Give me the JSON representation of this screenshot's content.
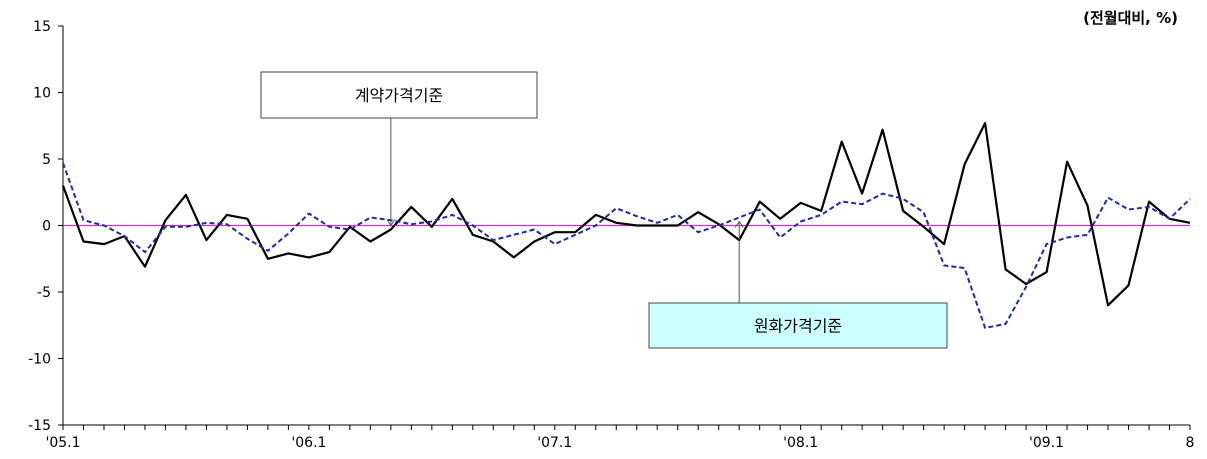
{
  "chart_data": {
    "type": "line",
    "unit_label": "(전월대비, %)",
    "ylim": [
      -15,
      15
    ],
    "y_ticks": [
      15,
      10,
      5,
      0,
      -5,
      -10,
      -15
    ],
    "x_tick_labels": [
      "'05.1",
      "'06.1",
      "'07.1",
      "'08.1",
      "'09.1",
      "8"
    ],
    "x_tick_label_months": [
      0,
      12,
      24,
      36,
      48,
      55
    ],
    "reference_line": {
      "value": 0,
      "color": "#cc33cc"
    },
    "series": [
      {
        "name": "계약가격기준",
        "color": "#000000",
        "dash": "solid",
        "x": [
          0,
          1,
          2,
          3,
          4,
          5,
          6,
          7,
          8,
          9,
          10,
          11,
          12,
          13,
          14,
          15,
          16,
          17,
          18,
          19,
          20,
          21,
          22,
          23,
          24,
          25,
          26,
          27,
          28,
          29,
          30,
          31,
          32,
          33,
          34,
          35,
          36,
          37,
          38,
          39,
          40,
          41,
          42,
          43,
          44,
          45,
          46,
          47,
          48,
          49,
          50,
          51,
          52,
          53,
          54,
          55
        ],
        "values": [
          3.0,
          -1.2,
          -1.4,
          -0.8,
          -3.1,
          0.4,
          2.3,
          -1.1,
          0.8,
          0.5,
          -2.5,
          -2.1,
          -2.4,
          -2.0,
          -0.1,
          -1.2,
          -0.3,
          1.4,
          -0.1,
          2.0,
          -0.7,
          -1.2,
          -2.4,
          -1.2,
          -0.5,
          -0.5,
          0.8,
          0.2,
          0.0,
          0.0,
          0.0,
          1.0,
          0.1,
          -1.1,
          1.8,
          0.5,
          1.7,
          1.1,
          6.3,
          2.4,
          7.2,
          1.1,
          -0.1,
          -1.4,
          4.6,
          7.7,
          -3.3,
          -4.4,
          -3.5,
          4.8,
          1.5,
          -6.0,
          -4.5,
          1.8,
          0.5,
          0.2
        ]
      },
      {
        "name": "원화가격기준",
        "color": "#1f2aa8",
        "dash": "dashed",
        "x": [
          0,
          1,
          2,
          3,
          4,
          5,
          6,
          7,
          8,
          9,
          10,
          11,
          12,
          13,
          14,
          15,
          16,
          17,
          18,
          19,
          20,
          21,
          22,
          23,
          24,
          25,
          26,
          27,
          28,
          29,
          30,
          31,
          32,
          33,
          34,
          35,
          36,
          37,
          38,
          39,
          40,
          41,
          42,
          43,
          44,
          45,
          46,
          47,
          48,
          49,
          50,
          51,
          52,
          53,
          54,
          55
        ],
        "values": [
          4.7,
          0.4,
          0.0,
          -0.8,
          -2.0,
          -0.1,
          -0.1,
          0.2,
          0.1,
          -1.0,
          -1.9,
          -0.6,
          0.9,
          -0.1,
          -0.3,
          0.6,
          0.4,
          0.1,
          0.3,
          0.8,
          0.0,
          -1.1,
          -0.7,
          -0.3,
          -1.4,
          -0.7,
          0.0,
          1.3,
          0.7,
          0.2,
          0.8,
          -0.5,
          0.0,
          0.6,
          1.2,
          -0.9,
          0.3,
          0.8,
          1.8,
          1.6,
          2.4,
          2.0,
          1.0,
          -3.0,
          -3.2,
          -7.7,
          -7.4,
          -4.6,
          -1.4,
          -0.9,
          -0.7,
          2.1,
          1.2,
          1.4,
          0.5,
          2.0
        ]
      }
    ],
    "annotations": [
      {
        "text": "계약가격기준",
        "points_to_series": 0,
        "at_x": 16
      },
      {
        "text": "원화가격기준",
        "points_to_series": 1,
        "at_x": 33
      }
    ],
    "grid": false,
    "legend": "none"
  }
}
